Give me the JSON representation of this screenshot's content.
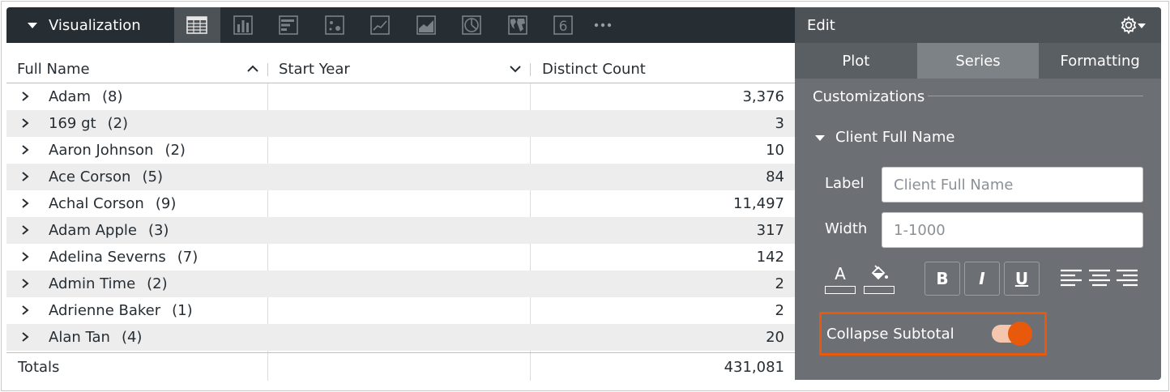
{
  "visualization": {
    "title": "Visualization",
    "icons": [
      {
        "name": "table-icon",
        "active": true
      },
      {
        "name": "column-chart-icon",
        "active": false
      },
      {
        "name": "bar-chart-icon",
        "active": false
      },
      {
        "name": "scatter-icon",
        "active": false
      },
      {
        "name": "line-chart-icon",
        "active": false
      },
      {
        "name": "area-chart-icon",
        "active": false
      },
      {
        "name": "pie-chart-icon",
        "active": false
      },
      {
        "name": "map-icon",
        "active": false
      },
      {
        "name": "single-value-icon",
        "active": false,
        "glyph": "6"
      },
      {
        "name": "more-icon",
        "active": false
      }
    ]
  },
  "table": {
    "columns": [
      {
        "label": "Full Name",
        "sort": "asc"
      },
      {
        "label": "Start Year",
        "sort": "desc"
      },
      {
        "label": "Distinct Count"
      }
    ],
    "rows": [
      {
        "name": "Adam",
        "count": "(8)",
        "start_year": "",
        "value": "3,376"
      },
      {
        "name": "169 gt",
        "count": "(2)",
        "start_year": "",
        "value": "3"
      },
      {
        "name": "Aaron Johnson",
        "count": "(2)",
        "start_year": "",
        "value": "10"
      },
      {
        "name": "Ace Corson",
        "count": "(5)",
        "start_year": "",
        "value": "84"
      },
      {
        "name": "Achal Corson",
        "count": "(9)",
        "start_year": "",
        "value": "11,497"
      },
      {
        "name": "Adam Apple",
        "count": "(3)",
        "start_year": "",
        "value": "317"
      },
      {
        "name": "Adelina Severns",
        "count": "(7)",
        "start_year": "",
        "value": "142"
      },
      {
        "name": "Admin Time",
        "count": "(2)",
        "start_year": "",
        "value": "2"
      },
      {
        "name": "Adrienne Baker",
        "count": "(1)",
        "start_year": "",
        "value": "2"
      },
      {
        "name": "Alan Tan",
        "count": "(4)",
        "start_year": "",
        "value": "20"
      }
    ],
    "totals": {
      "label": "Totals",
      "value": "431,081"
    }
  },
  "edit": {
    "title": "Edit",
    "tabs": [
      {
        "label": "Plot",
        "active": false
      },
      {
        "label": "Series",
        "active": true
      },
      {
        "label": "Formatting",
        "active": false
      }
    ],
    "customizations_title": "Customizations",
    "group_title": "Client Full Name",
    "label_field": {
      "label": "Label",
      "value": "",
      "placeholder": "Client Full Name"
    },
    "width_field": {
      "label": "Width",
      "value": "",
      "placeholder": "1-1000"
    },
    "format_buttons": {
      "bold": "B",
      "italic": "I",
      "underline": "U",
      "font_color": "A"
    },
    "collapse_subtotal": {
      "label": "Collapse Subtotal",
      "on": true
    }
  },
  "colors": {
    "accent": "#e8590c",
    "toggle_track": "#f4c6ad",
    "dark_bar": "#262d33",
    "panel": "#6c7075"
  }
}
